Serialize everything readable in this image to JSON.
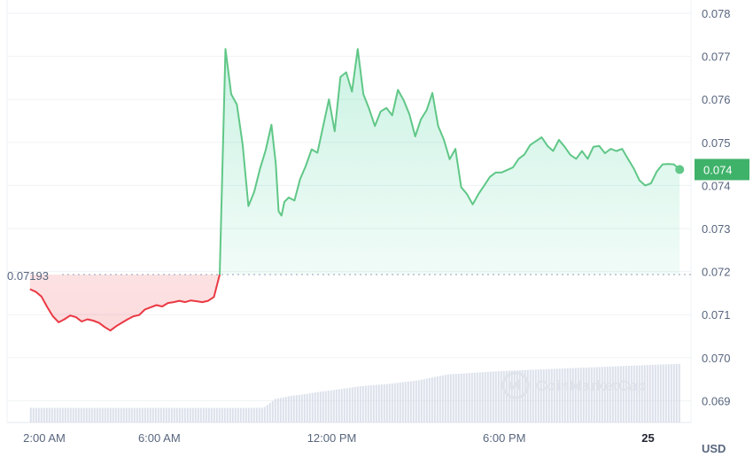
{
  "chart_data": {
    "type": "line",
    "x_labels": [
      "2:00 AM",
      "6:00 AM",
      "12:00 PM",
      "6:00 PM",
      "25"
    ],
    "y_ticks": [
      "0.078",
      "0.077",
      "0.076",
      "0.075",
      "0.074",
      "0.073",
      "0.072",
      "0.071",
      "0.070",
      "0.069"
    ],
    "ylim": [
      0.0686,
      0.0782
    ],
    "unit": "USD",
    "reference_price": "0.07193",
    "reference_value": 0.07193,
    "current_price_label": "0.074",
    "current_value": 0.07437,
    "grid": true,
    "x_start_hour": 1.5,
    "x_end_hour": 24.1,
    "series": [
      {
        "x": [
          1.5,
          1.7,
          1.9,
          2.1,
          2.3,
          2.5,
          2.7,
          2.9,
          3.1,
          3.3,
          3.5,
          3.7,
          3.9,
          4.1,
          4.3,
          4.5,
          4.7,
          4.9,
          5.1,
          5.3,
          5.5,
          5.7,
          5.9,
          6.1,
          6.3,
          6.5,
          6.7,
          6.9,
          7.1,
          7.3,
          7.5,
          7.7,
          7.9,
          8.1,
          8.3,
          8.5,
          8.7,
          8.9,
          9.1,
          9.3,
          9.5,
          9.7,
          9.9,
          10.05,
          10.15,
          10.25,
          10.35,
          10.5,
          10.7,
          10.9,
          11.1,
          11.3,
          11.5,
          11.7,
          11.9,
          12.1,
          12.3,
          12.5,
          12.7,
          12.9,
          13.1,
          13.3,
          13.5,
          13.7,
          13.9,
          14.1,
          14.3,
          14.5,
          14.7,
          14.9,
          15.1,
          15.3,
          15.5,
          15.7,
          15.9,
          16.1,
          16.3,
          16.5,
          16.7,
          16.9,
          17.1,
          17.3,
          17.5,
          17.7,
          17.9,
          18.1,
          18.3,
          18.5,
          18.7,
          18.9,
          19.1,
          19.3,
          19.5,
          19.7,
          19.9,
          20.1,
          20.3,
          20.5,
          20.7,
          20.9,
          21.1,
          21.3,
          21.5,
          21.7,
          21.9,
          22.1,
          22.3,
          22.5,
          22.7,
          22.9,
          23.1,
          23.3,
          23.5,
          23.7,
          23.9,
          24.1
        ],
        "values": [
          0.07159,
          0.07153,
          0.07142,
          0.07118,
          0.07096,
          0.07082,
          0.07089,
          0.07098,
          0.07094,
          0.07084,
          0.07089,
          0.07086,
          0.07081,
          0.07071,
          0.07063,
          0.07073,
          0.07081,
          0.07089,
          0.07096,
          0.07099,
          0.07112,
          0.07117,
          0.07122,
          0.07119,
          0.07127,
          0.07129,
          0.07132,
          0.07129,
          0.07133,
          0.07131,
          0.07129,
          0.07132,
          0.07141,
          0.07193,
          0.07717,
          0.07612,
          0.07588,
          0.07495,
          0.07352,
          0.07385,
          0.07438,
          0.07482,
          0.07541,
          0.07451,
          0.0734,
          0.0733,
          0.07362,
          0.07372,
          0.07365,
          0.07415,
          0.07446,
          0.07484,
          0.07476,
          0.07538,
          0.076,
          0.07526,
          0.07652,
          0.07663,
          0.07618,
          0.07717,
          0.07612,
          0.07578,
          0.07538,
          0.07572,
          0.0758,
          0.07563,
          0.07622,
          0.07598,
          0.07565,
          0.07514,
          0.07554,
          0.07575,
          0.07615,
          0.07538,
          0.07506,
          0.07461,
          0.07485,
          0.07396,
          0.0738,
          0.07356,
          0.0738,
          0.074,
          0.0742,
          0.0743,
          0.0743,
          0.07436,
          0.07442,
          0.07462,
          0.07472,
          0.07494,
          0.07503,
          0.07512,
          0.07492,
          0.0748,
          0.07506,
          0.0749,
          0.07471,
          0.07462,
          0.0748,
          0.07462,
          0.0749,
          0.07492,
          0.07475,
          0.07485,
          0.0748,
          0.07485,
          0.07462,
          0.0744,
          0.07412,
          0.074,
          0.07405,
          0.07432,
          0.07449,
          0.0745,
          0.07449,
          0.07437
        ]
      }
    ],
    "volume": {
      "x": [
        1.5,
        4,
        6,
        8,
        9.6,
        10,
        10.5,
        11,
        11.5,
        12,
        13,
        14,
        15,
        16,
        17,
        18,
        19,
        20,
        21,
        22,
        23,
        24.1
      ],
      "values": [
        0.25,
        0.25,
        0.25,
        0.25,
        0.25,
        0.4,
        0.45,
        0.48,
        0.52,
        0.55,
        0.62,
        0.66,
        0.72,
        0.82,
        0.85,
        0.88,
        0.9,
        0.92,
        0.94,
        0.96,
        0.98,
        1.0
      ]
    },
    "colors": {
      "up": "#16c784",
      "up_line": "#60c787",
      "down": "#ea3943",
      "grid": "#eff2f5",
      "reference": "#a6b0c3",
      "volume": "#cfd6e4",
      "label_bg": "#3fb26a"
    },
    "watermark": "CoinMarketCap"
  }
}
